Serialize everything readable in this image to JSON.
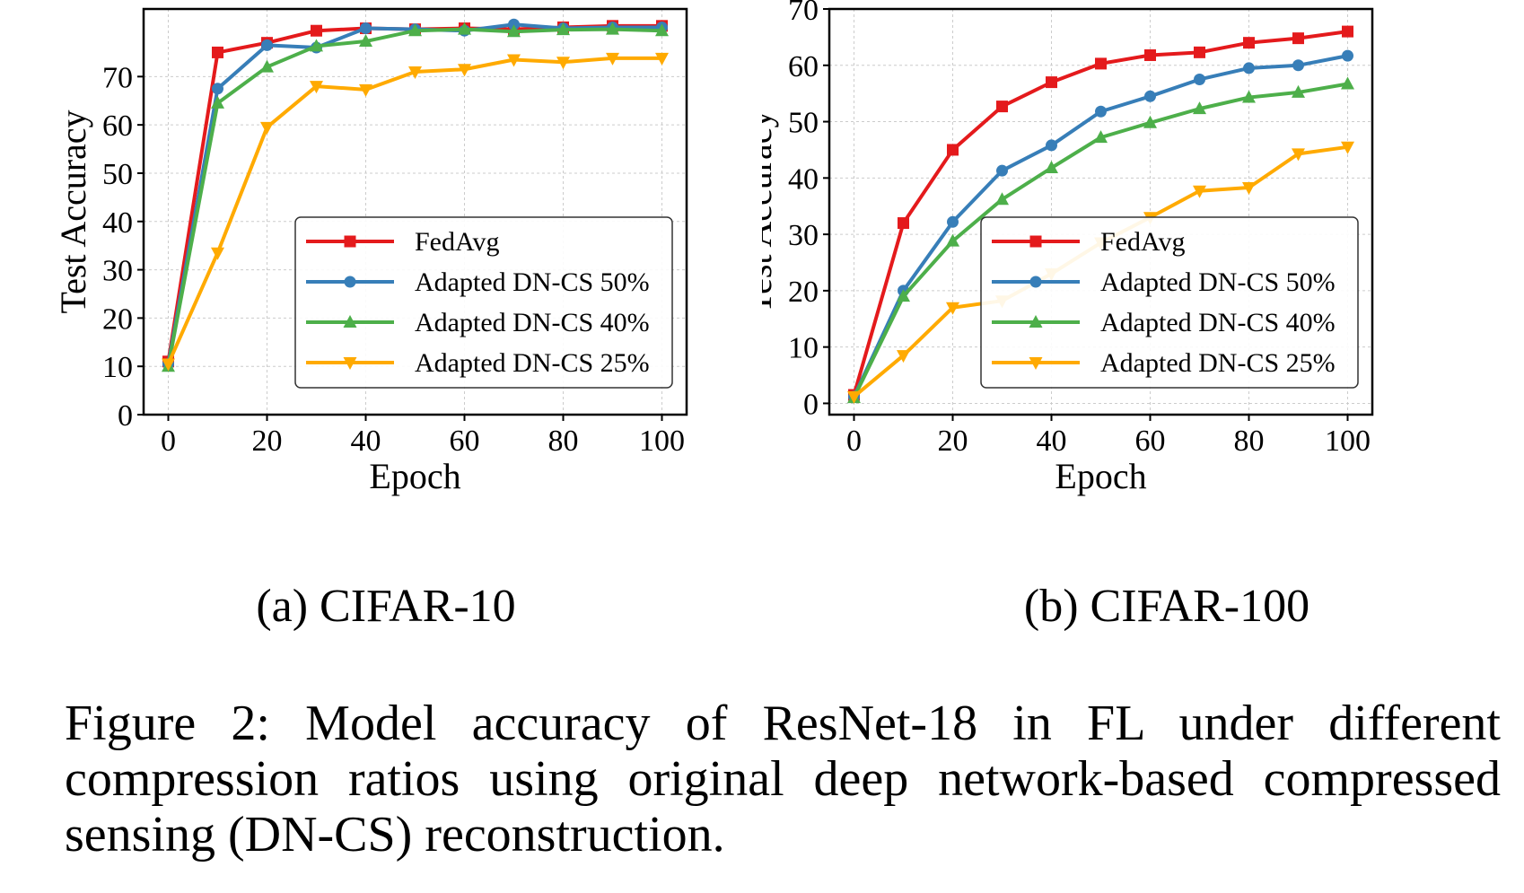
{
  "figure_caption": "Figure 2: Model accuracy of ResNet-18 in FL under different compression ratios using original deep network-based compressed sensing (DN-CS) reconstruction.",
  "chart_data": [
    {
      "type": "line",
      "caption": "(a) CIFAR-10",
      "xlabel": "Epoch",
      "ylabel": "Test Accuracy",
      "xlim": [
        -5,
        105
      ],
      "ylim": [
        0,
        84
      ],
      "xticks": [
        0,
        20,
        40,
        60,
        80,
        100
      ],
      "yticks": [
        0,
        10,
        20,
        30,
        40,
        50,
        60,
        70
      ],
      "grid": true,
      "legend_position": "lower-right",
      "x": [
        0,
        10,
        20,
        30,
        40,
        50,
        60,
        70,
        80,
        90,
        100
      ],
      "series": [
        {
          "name": "FedAvg",
          "color": "#e41a1c",
          "marker": "square",
          "values": [
            11,
            75,
            77,
            79.5,
            80,
            79.8,
            80,
            79.8,
            80.2,
            80.5,
            80.5
          ]
        },
        {
          "name": "Adapted DN-CS 50%",
          "color": "#377eb8",
          "marker": "circle",
          "values": [
            10.5,
            67.5,
            76.5,
            76,
            80,
            79.8,
            79.5,
            80.8,
            80,
            80.2,
            80.2
          ]
        },
        {
          "name": "Adapted DN-CS 40%",
          "color": "#4daf4a",
          "marker": "triangle-up",
          "values": [
            10,
            64.5,
            72,
            76.3,
            77.3,
            79.5,
            79.8,
            79.3,
            79.7,
            79.8,
            79.5
          ]
        },
        {
          "name": "Adapted DN-CS 25%",
          "color": "#ffaa00",
          "marker": "triangle-down",
          "values": [
            10.5,
            33.5,
            59.5,
            68,
            67.3,
            71,
            71.5,
            73.5,
            73,
            73.8,
            73.8
          ]
        }
      ]
    },
    {
      "type": "line",
      "caption": "(b) CIFAR-100",
      "xlabel": "Epoch",
      "ylabel": "Test Accuracy",
      "xlim": [
        -5,
        105
      ],
      "ylim": [
        -2,
        70
      ],
      "xticks": [
        0,
        20,
        40,
        60,
        80,
        100
      ],
      "yticks": [
        0,
        10,
        20,
        30,
        40,
        50,
        60,
        70
      ],
      "grid": true,
      "legend_position": "lower-right",
      "x": [
        0,
        10,
        20,
        30,
        40,
        50,
        60,
        70,
        80,
        90,
        100
      ],
      "series": [
        {
          "name": "FedAvg",
          "color": "#e41a1c",
          "marker": "square",
          "values": [
            1.5,
            32,
            45,
            52.7,
            57,
            60.3,
            61.8,
            62.3,
            64,
            64.8,
            66
          ]
        },
        {
          "name": "Adapted DN-CS 50%",
          "color": "#377eb8",
          "marker": "circle",
          "values": [
            1.2,
            20,
            32.2,
            41.3,
            45.8,
            51.8,
            54.5,
            57.5,
            59.5,
            60,
            61.7
          ]
        },
        {
          "name": "Adapted DN-CS 40%",
          "color": "#4daf4a",
          "marker": "triangle-up",
          "values": [
            1,
            19,
            28.8,
            36.2,
            41.8,
            47.2,
            49.8,
            52.3,
            54.3,
            55.2,
            56.7
          ]
        },
        {
          "name": "Adapted DN-CS 25%",
          "color": "#ffaa00",
          "marker": "triangle-down",
          "values": [
            1.2,
            8.5,
            17,
            18.2,
            23,
            28.5,
            33,
            37.7,
            38.3,
            44.3,
            45.5
          ]
        }
      ]
    }
  ]
}
